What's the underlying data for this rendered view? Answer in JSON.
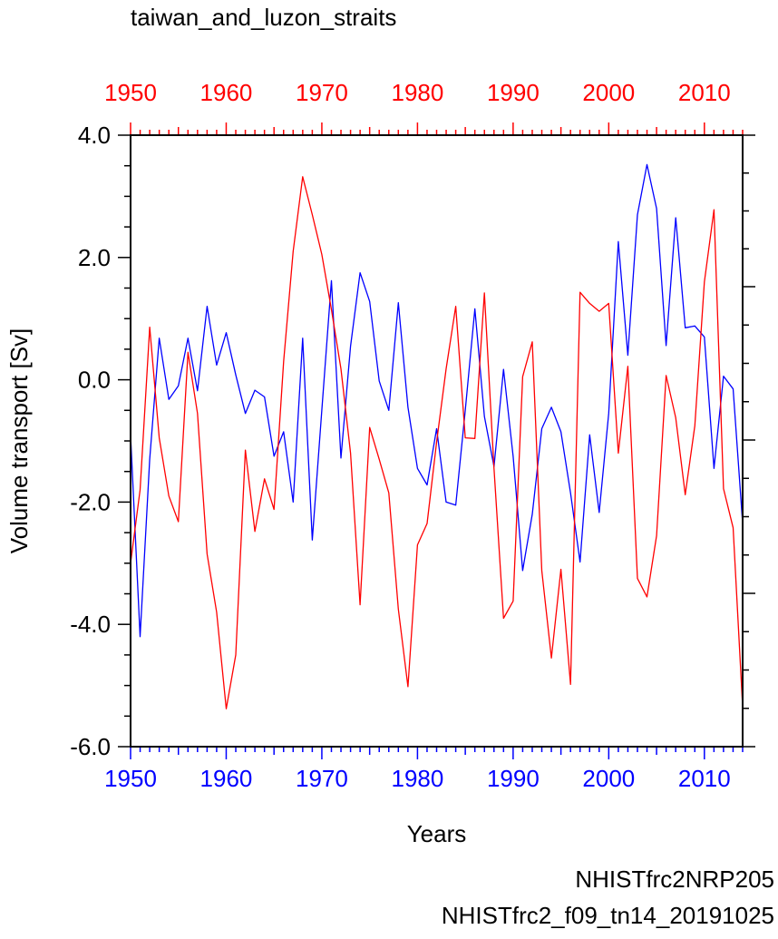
{
  "chart_data": {
    "type": "line",
    "title": "taiwan_and_luzon_straits",
    "xlabel": "Years",
    "ylabel": "Volume transport [Sv]",
    "xlim": [
      1950,
      2014
    ],
    "ylim": [
      -6.0,
      4.0
    ],
    "yticks": [
      -6.0,
      -4.0,
      -2.0,
      0.0,
      2.0,
      4.0
    ],
    "ytick_labels": [
      "-6.0",
      "-4.0",
      "-2.0",
      "0.0",
      "2.0",
      "4.0"
    ],
    "xticks": [
      1950,
      1960,
      1970,
      1980,
      1990,
      2000,
      2010
    ],
    "xtick_labels": [
      "1950",
      "1960",
      "1970",
      "1980",
      "1990",
      "2000",
      "2010"
    ],
    "x": [
      1950,
      1951,
      1952,
      1953,
      1954,
      1955,
      1956,
      1957,
      1958,
      1959,
      1960,
      1961,
      1962,
      1963,
      1964,
      1965,
      1966,
      1967,
      1968,
      1969,
      1970,
      1971,
      1972,
      1973,
      1974,
      1975,
      1976,
      1977,
      1978,
      1979,
      1980,
      1981,
      1982,
      1983,
      1984,
      1985,
      1986,
      1987,
      1988,
      1989,
      1990,
      1991,
      1992,
      1993,
      1994,
      1995,
      1996,
      1997,
      1998,
      1999,
      2000,
      2001,
      2002,
      2003,
      2004,
      2005,
      2006,
      2007,
      2008,
      2009,
      2010,
      2011,
      2012,
      2013,
      2014
    ],
    "series": [
      {
        "name": "NHISTfrc2NRP205",
        "color": "#0000ff",
        "values": [
          -0.9,
          -4.2,
          -1.3,
          0.68,
          -0.32,
          -0.1,
          0.68,
          -0.18,
          1.2,
          0.24,
          0.77,
          0.08,
          -0.55,
          -0.17,
          -0.28,
          -1.25,
          -0.85,
          -2.0,
          0.68,
          -2.62,
          -0.5,
          1.62,
          -1.28,
          0.55,
          1.75,
          1.28,
          -0.02,
          -0.5,
          1.26,
          -0.45,
          -1.45,
          -1.72,
          -0.8,
          -2.0,
          -2.05,
          -0.5,
          1.16,
          -0.6,
          -1.42,
          0.17,
          -1.25,
          -3.12,
          -2.2,
          -0.8,
          -0.45,
          -0.85,
          -1.85,
          -2.98,
          -0.9,
          -2.17,
          -0.55,
          2.26,
          0.4,
          2.7,
          3.52,
          2.8,
          0.56,
          2.65,
          0.85,
          0.88,
          0.7,
          -1.45,
          0.06,
          -0.15,
          -2.35
        ]
      },
      {
        "name": "NHISTfrc2_f09_tn14_20191025",
        "color": "#ff0000",
        "values": [
          -3.0,
          -1.8,
          0.86,
          -0.95,
          -1.9,
          -2.32,
          0.45,
          -0.55,
          -2.85,
          -3.8,
          -5.38,
          -4.5,
          -1.15,
          -2.48,
          -1.62,
          -2.12,
          0.3,
          2.1,
          3.32,
          2.7,
          2.05,
          1.15,
          0.18,
          -1.2,
          -3.68,
          -0.78,
          -1.3,
          -1.85,
          -3.75,
          -5.02,
          -2.7,
          -2.35,
          -1.02,
          0.18,
          1.2,
          -0.95,
          -0.96,
          1.42,
          -1.45,
          -3.9,
          -3.62,
          0.05,
          0.62,
          -3.12,
          -4.55,
          -3.1,
          -4.98,
          1.43,
          1.25,
          1.12,
          1.25,
          -1.2,
          0.22,
          -3.25,
          -3.55,
          -2.55,
          0.07,
          -0.62,
          -1.88,
          -0.75,
          1.6,
          2.78,
          -1.78,
          -2.42,
          -5.35
        ]
      }
    ]
  }
}
